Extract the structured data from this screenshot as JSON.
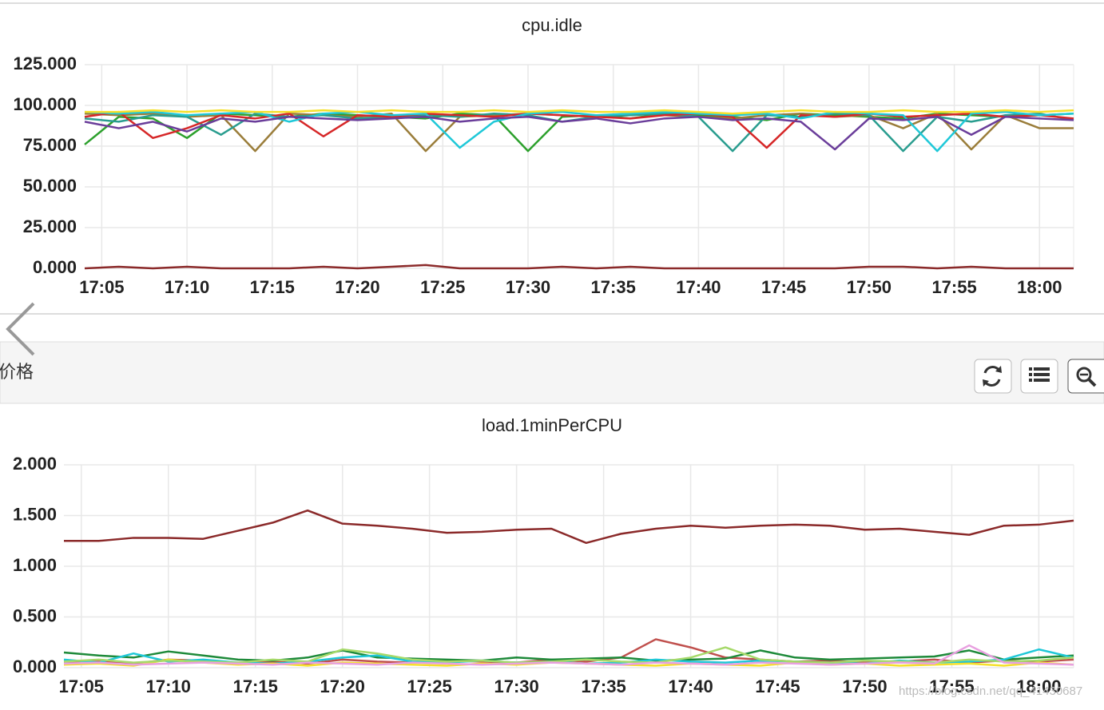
{
  "chart_data": [
    {
      "type": "line",
      "title": "cpu.idle",
      "x": [
        "17:04",
        "17:06",
        "17:08",
        "17:10",
        "17:12",
        "17:14",
        "17:16",
        "17:18",
        "17:20",
        "17:22",
        "17:24",
        "17:26",
        "17:28",
        "17:30",
        "17:32",
        "17:34",
        "17:36",
        "17:38",
        "17:40",
        "17:42",
        "17:44",
        "17:46",
        "17:48",
        "17:50",
        "17:52",
        "17:54",
        "17:56",
        "17:58",
        "18:00",
        "18:02"
      ],
      "xlim": [
        "17:04",
        "18:02"
      ],
      "xticks": [
        "17:05",
        "17:10",
        "17:15",
        "17:20",
        "17:25",
        "17:30",
        "17:35",
        "17:40",
        "17:45",
        "17:50",
        "17:55",
        "18:00"
      ],
      "ylim": [
        0,
        125
      ],
      "yticks": [
        {
          "value": 0,
          "label": "0.000"
        },
        {
          "value": 25,
          "label": "25.000"
        },
        {
          "value": 50,
          "label": "50.000"
        },
        {
          "value": 75,
          "label": "75.000"
        },
        {
          "value": 100,
          "label": "100.000"
        },
        {
          "value": 125,
          "label": "125.000"
        }
      ],
      "grid": true,
      "series": [
        {
          "color": "#8b2a2a",
          "values": [
            0,
            1,
            0,
            1,
            0,
            0,
            0,
            1,
            0,
            1,
            2,
            0,
            0,
            0,
            1,
            0,
            1,
            0,
            0,
            0,
            0,
            0,
            0,
            1,
            1,
            0,
            1,
            0,
            0,
            0
          ]
        },
        {
          "color": "#2ca02c",
          "values": [
            76,
            93,
            92,
            80,
            95,
            94,
            93,
            95,
            94,
            93,
            92,
            95,
            94,
            72,
            93,
            94,
            92,
            95,
            94,
            93,
            91,
            95,
            94,
            93,
            92,
            95,
            94,
            93,
            94,
            95
          ]
        },
        {
          "color": "#9a7d3a",
          "values": [
            95,
            94,
            95,
            93,
            94,
            72,
            95,
            94,
            93,
            95,
            72,
            93,
            94,
            95,
            94,
            93,
            95,
            94,
            93,
            92,
            94,
            95,
            93,
            94,
            86,
            95,
            73,
            94,
            86,
            86
          ]
        },
        {
          "color": "#2a9d8f",
          "values": [
            92,
            90,
            94,
            93,
            82,
            95,
            93,
            94,
            92,
            93,
            94,
            93,
            95,
            94,
            90,
            93,
            94,
            95,
            93,
            72,
            94,
            93,
            95,
            94,
            72,
            93,
            90,
            94,
            95,
            91
          ]
        },
        {
          "color": "#d62728",
          "values": [
            93,
            96,
            80,
            86,
            94,
            92,
            95,
            81,
            94,
            93,
            95,
            94,
            93,
            95,
            94,
            93,
            92,
            94,
            95,
            93,
            74,
            94,
            93,
            95,
            93,
            94,
            95,
            93,
            94,
            92
          ]
        },
        {
          "color": "#1fc8d8",
          "values": [
            96,
            95,
            96,
            94,
            95,
            96,
            90,
            95,
            96,
            94,
            95,
            74,
            90,
            95,
            96,
            94,
            95,
            96,
            95,
            94,
            95,
            92,
            96,
            95,
            94,
            72,
            95,
            96,
            94,
            95
          ]
        },
        {
          "color": "#6a3d9a",
          "values": [
            90,
            86,
            90,
            84,
            92,
            90,
            93,
            92,
            91,
            92,
            93,
            90,
            92,
            93,
            90,
            92,
            89,
            92,
            93,
            91,
            92,
            90,
            73,
            92,
            91,
            93,
            82,
            93,
            92,
            91
          ]
        },
        {
          "color": "#f5e02a",
          "values": [
            96,
            96,
            97,
            96,
            97,
            96,
            96,
            97,
            96,
            97,
            96,
            96,
            97,
            96,
            97,
            96,
            96,
            97,
            96,
            95,
            96,
            97,
            96,
            96,
            97,
            96,
            96,
            97,
            96,
            97
          ]
        }
      ]
    },
    {
      "type": "line",
      "title": "load.1minPerCPU",
      "x": [
        "17:04",
        "17:06",
        "17:08",
        "17:10",
        "17:12",
        "17:14",
        "17:16",
        "17:18",
        "17:20",
        "17:22",
        "17:24",
        "17:26",
        "17:28",
        "17:30",
        "17:32",
        "17:34",
        "17:36",
        "17:38",
        "17:40",
        "17:42",
        "17:44",
        "17:46",
        "17:48",
        "17:50",
        "17:52",
        "17:54",
        "17:56",
        "17:58",
        "18:00",
        "18:02"
      ],
      "xlim": [
        "17:04",
        "18:02"
      ],
      "xticks": [
        "17:05",
        "17:10",
        "17:15",
        "17:20",
        "17:25",
        "17:30",
        "17:35",
        "17:40",
        "17:45",
        "17:50",
        "17:55",
        "18:00"
      ],
      "ylim": [
        0,
        2
      ],
      "yticks": [
        {
          "value": 0,
          "label": "0.000"
        },
        {
          "value": 0.5,
          "label": "0.500"
        },
        {
          "value": 1,
          "label": "1.000"
        },
        {
          "value": 1.5,
          "label": "1.500"
        },
        {
          "value": 2,
          "label": "2.000"
        }
      ],
      "grid": true,
      "series": [
        {
          "color": "#8b2a2a",
          "values": [
            1.25,
            1.25,
            1.28,
            1.28,
            1.27,
            1.35,
            1.43,
            1.55,
            1.42,
            1.4,
            1.37,
            1.33,
            1.34,
            1.36,
            1.37,
            1.23,
            1.32,
            1.37,
            1.4,
            1.38,
            1.4,
            1.41,
            1.4,
            1.36,
            1.37,
            1.34,
            1.31,
            1.4,
            1.41,
            1.45
          ]
        },
        {
          "color": "#c0504d",
          "values": [
            0.05,
            0.06,
            0.04,
            0.08,
            0.07,
            0.05,
            0.06,
            0.04,
            0.08,
            0.06,
            0.05,
            0.07,
            0.06,
            0.05,
            0.08,
            0.06,
            0.1,
            0.28,
            0.2,
            0.1,
            0.08,
            0.06,
            0.07,
            0.05,
            0.06,
            0.08,
            0.05,
            0.07,
            0.06,
            0.08
          ]
        },
        {
          "color": "#1e8a3a",
          "values": [
            0.15,
            0.12,
            0.1,
            0.16,
            0.12,
            0.08,
            0.07,
            0.1,
            0.17,
            0.1,
            0.09,
            0.08,
            0.07,
            0.1,
            0.08,
            0.09,
            0.1,
            0.07,
            0.08,
            0.09,
            0.17,
            0.1,
            0.08,
            0.09,
            0.1,
            0.11,
            0.17,
            0.08,
            0.1,
            0.12
          ]
        },
        {
          "color": "#1fc8d8",
          "values": [
            0.08,
            0.05,
            0.14,
            0.06,
            0.08,
            0.05,
            0.04,
            0.06,
            0.1,
            0.12,
            0.06,
            0.05,
            0.07,
            0.05,
            0.06,
            0.04,
            0.05,
            0.08,
            0.06,
            0.05,
            0.07,
            0.06,
            0.05,
            0.04,
            0.07,
            0.05,
            0.06,
            0.08,
            0.18,
            0.1
          ]
        },
        {
          "color": "#f5e02a",
          "values": [
            0.03,
            0.04,
            0.02,
            0.08,
            0.05,
            0.03,
            0.04,
            0.02,
            0.05,
            0.04,
            0.03,
            0.02,
            0.04,
            0.03,
            0.05,
            0.04,
            0.03,
            0.02,
            0.04,
            0.03,
            0.02,
            0.05,
            0.03,
            0.04,
            0.02,
            0.03,
            0.04,
            0.02,
            0.05,
            0.03
          ]
        },
        {
          "color": "#a6d96a",
          "values": [
            0.06,
            0.08,
            0.05,
            0.07,
            0.06,
            0.05,
            0.08,
            0.06,
            0.18,
            0.14,
            0.08,
            0.06,
            0.07,
            0.05,
            0.06,
            0.08,
            0.06,
            0.05,
            0.1,
            0.2,
            0.08,
            0.06,
            0.05,
            0.07,
            0.06,
            0.05,
            0.08,
            0.06,
            0.07,
            0.1
          ]
        },
        {
          "color": "#e8a0e0",
          "values": [
            0.04,
            0.05,
            0.03,
            0.04,
            0.05,
            0.04,
            0.03,
            0.05,
            0.04,
            0.03,
            0.05,
            0.04,
            0.03,
            0.04,
            0.05,
            0.04,
            0.03,
            0.05,
            0.04,
            0.03,
            0.05,
            0.04,
            0.03,
            0.04,
            0.05,
            0.04,
            0.22,
            0.05,
            0.04,
            0.03
          ]
        }
      ]
    }
  ],
  "panel": {
    "title": "价格"
  },
  "watermark": "https://blog.csdn.net/qq_41430687"
}
